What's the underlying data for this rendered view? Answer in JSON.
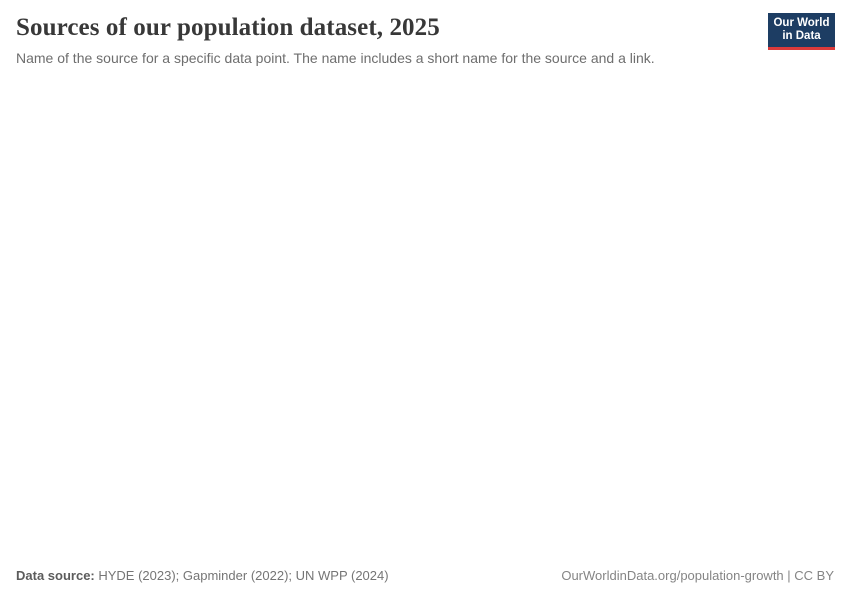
{
  "header": {
    "title": "Sources of our population dataset, 2025",
    "subtitle": "Name of the source for a specific data point. The name includes a short name for the source and a link."
  },
  "logo": {
    "line1": "Our World",
    "line2": "in Data",
    "bg_color": "#1d3d63",
    "accent_color": "#dc3a3a"
  },
  "footer": {
    "data_source_label": "Data source:",
    "data_source_value": " HYDE (2023); Gapminder (2022); UN WPP (2024)",
    "attribution": "OurWorldinData.org/population-growth | CC BY"
  },
  "chart_data": {
    "type": "table",
    "title": "Sources of our population dataset, 2025",
    "subtitle": "Name of the source for a specific data point. The name includes a short name for the source and a link.",
    "series": [],
    "plot_area_rendered_empty": true
  }
}
